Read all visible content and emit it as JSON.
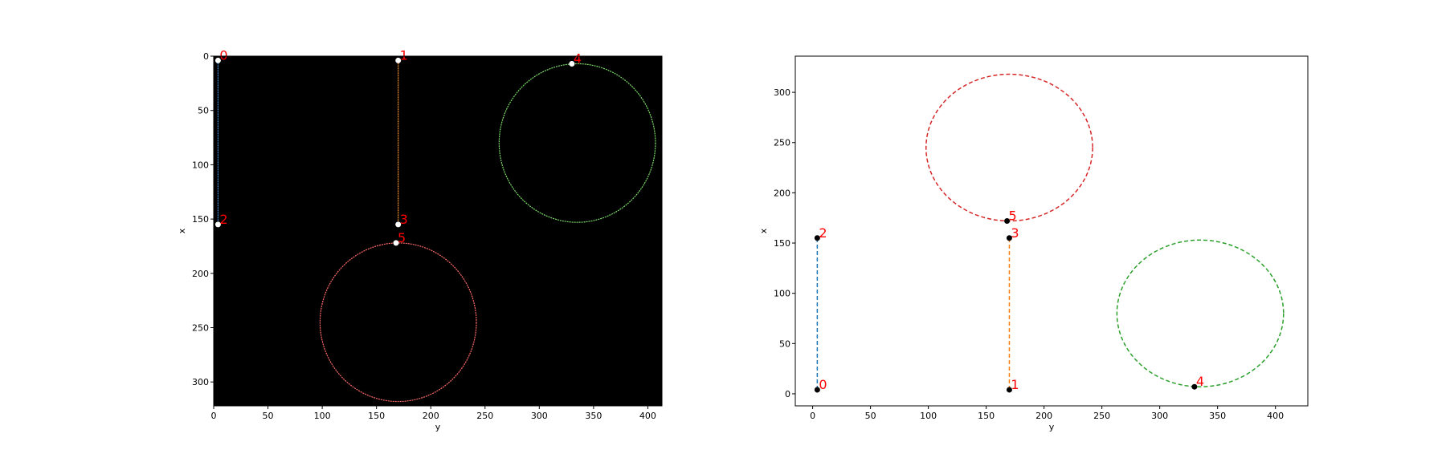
{
  "chart_data": [
    {
      "type": "image-overlay",
      "background": "#000000",
      "xlabel": "y",
      "ylabel": "x",
      "xlim": [
        0,
        413
      ],
      "ylim": [
        322,
        0
      ],
      "xticks": [
        0,
        50,
        100,
        150,
        200,
        250,
        300,
        350,
        400
      ],
      "yticks": [
        0,
        50,
        100,
        150,
        200,
        250,
        300
      ],
      "point_color": "#ffffff",
      "label_color": "#ff0000",
      "points": [
        {
          "label": "0",
          "x": 4,
          "y": 4
        },
        {
          "label": "1",
          "x": 170,
          "y": 4
        },
        {
          "label": "2",
          "x": 4,
          "y": 155
        },
        {
          "label": "3",
          "x": 170,
          "y": 155
        },
        {
          "label": "4",
          "x": 330,
          "y": 7
        },
        {
          "label": "5",
          "x": 168,
          "y": 172
        }
      ],
      "segments": [
        {
          "from": [
            4,
            4
          ],
          "to": [
            4,
            155
          ],
          "color": "#4a90d9"
        },
        {
          "from": [
            170,
            4
          ],
          "to": [
            170,
            155
          ],
          "color": "#ff9a2e"
        }
      ],
      "circles": [
        {
          "cx": 335,
          "cy": 80,
          "rx": 72,
          "ry": 73,
          "color": "#7ddc6a"
        },
        {
          "cx": 170,
          "cy": 245,
          "rx": 72,
          "ry": 73,
          "color": "#ff6a6a"
        }
      ]
    },
    {
      "type": "scatter-line",
      "background": "#ffffff",
      "xlabel": "y",
      "ylabel": "x",
      "xlim": [
        -15,
        428
      ],
      "ylim": [
        -12,
        336
      ],
      "xticks": [
        0,
        50,
        100,
        150,
        200,
        250,
        300,
        350,
        400
      ],
      "yticks": [
        0,
        50,
        100,
        150,
        200,
        250,
        300
      ],
      "point_color": "#000000",
      "label_color": "#ff0000",
      "points": [
        {
          "label": "0",
          "x": 4,
          "y": 4
        },
        {
          "label": "1",
          "x": 170,
          "y": 4
        },
        {
          "label": "2",
          "x": 4,
          "y": 155
        },
        {
          "label": "3",
          "x": 170,
          "y": 155
        },
        {
          "label": "4",
          "x": 330,
          "y": 7
        },
        {
          "label": "5",
          "x": 168,
          "y": 172
        }
      ],
      "segments": [
        {
          "from": [
            4,
            4
          ],
          "to": [
            4,
            155
          ],
          "color": "#1f77b4"
        },
        {
          "from": [
            170,
            4
          ],
          "to": [
            170,
            155
          ],
          "color": "#ff7f0e"
        }
      ],
      "circles": [
        {
          "cx": 335,
          "cy": 80,
          "rx": 72,
          "ry": 73,
          "color": "#2ca02c"
        },
        {
          "cx": 170,
          "cy": 245,
          "rx": 72,
          "ry": 73,
          "color": "#d62728"
        }
      ]
    }
  ]
}
